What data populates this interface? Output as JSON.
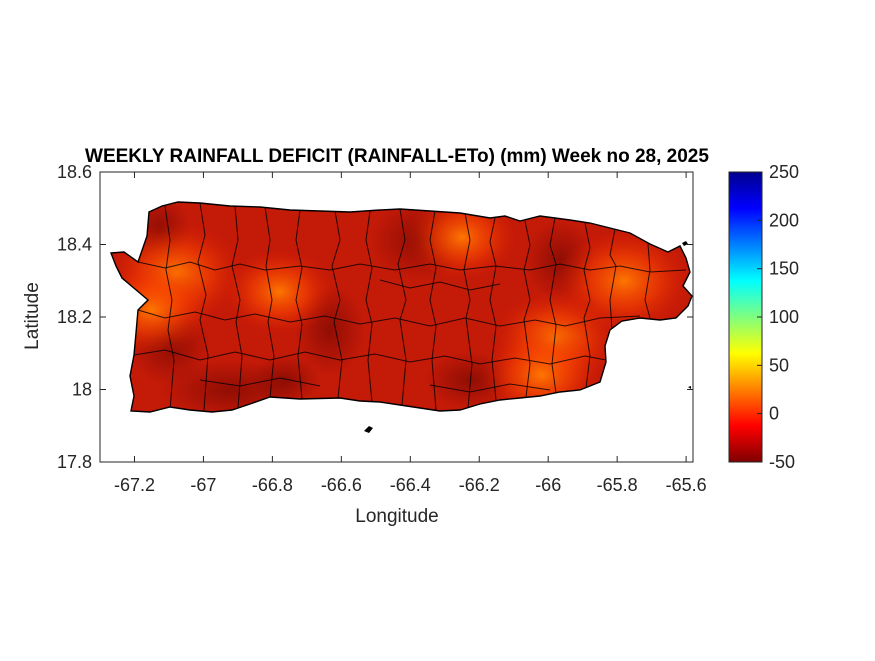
{
  "chart_data": {
    "type": "heatmap",
    "title": "WEEKLY RAINFALL DEFICIT (RAINFALL-ETo) (mm) Week no 28, 2025",
    "xlabel": "Longitude",
    "ylabel": "Latitude",
    "xlim": [
      -67.3,
      -65.58
    ],
    "ylim": [
      17.8,
      18.6
    ],
    "xticks": [
      -67.2,
      -67,
      -66.8,
      -66.6,
      -66.4,
      -66.2,
      -66,
      -65.8,
      -65.6
    ],
    "xtick_labels": [
      "-67.2",
      "-67",
      "-66.8",
      "-66.6",
      "-66.4",
      "-66.2",
      "-66",
      "-65.8",
      "-65.6"
    ],
    "yticks": [
      17.8,
      18,
      18.2,
      18.4,
      18.6
    ],
    "ytick_labels": [
      "17.8",
      "18",
      "18.2",
      "18.4",
      "18.6"
    ],
    "colorbar": {
      "colormap": "jet",
      "clim": [
        -50,
        250
      ],
      "ticks": [
        -50,
        0,
        50,
        100,
        150,
        200,
        250
      ],
      "tick_labels": [
        "-50",
        "0",
        "50",
        "100",
        "150",
        "200",
        "250"
      ]
    },
    "value_range_shown": [
      -50,
      5
    ],
    "warm_spots": [
      {
        "lon": -67.08,
        "lat": 18.32,
        "approx_value": 0
      },
      {
        "lon": -67.15,
        "lat": 18.22,
        "approx_value": -10
      },
      {
        "lon": -66.78,
        "lat": 18.27,
        "approx_value": -15
      },
      {
        "lon": -65.78,
        "lat": 18.3,
        "approx_value": 0
      },
      {
        "lon": -65.98,
        "lat": 18.14,
        "approx_value": -5
      },
      {
        "lon": -66.02,
        "lat": 18.04,
        "approx_value": -10
      },
      {
        "lon": -66.25,
        "lat": 18.42,
        "approx_value": -15
      }
    ],
    "grid": false,
    "legend": "colorbar-right"
  },
  "colors": {
    "background": "#ffffff",
    "base_deficit": "#c41a08",
    "dark_deficit": "#8c0a02",
    "warm": "#ff6a00",
    "boundary": "#000000"
  }
}
